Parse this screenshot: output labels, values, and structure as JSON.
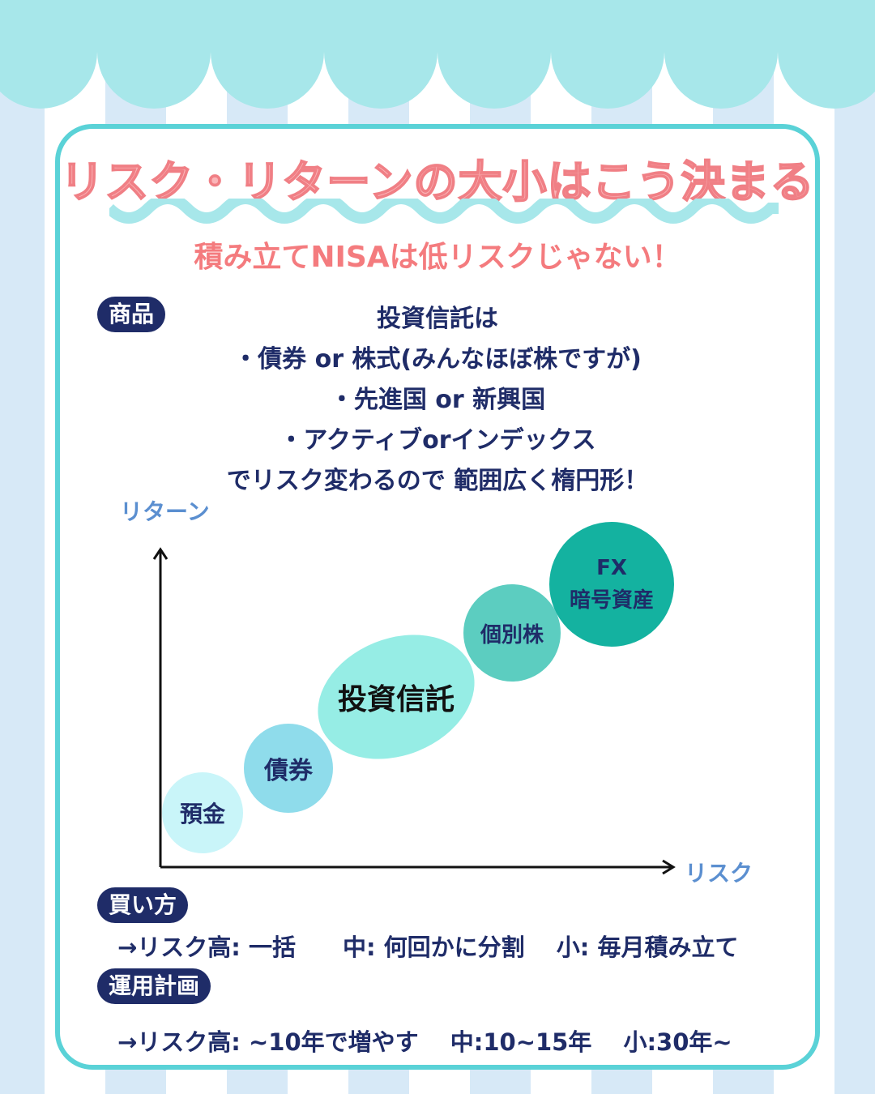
{
  "title": "リスク・リターンの大小はこう決まる",
  "subtitle": "積み立てNISAは低リスクじゃない！",
  "product": {
    "tag": "商品",
    "lines": [
      "投資信託は",
      "・債券 or 株式(みんなほぼ株ですが)",
      "・先進国 or 新興国",
      "・アクティブorインデックス",
      "でリスク変わるので 範囲広く楕円形！"
    ]
  },
  "diagram": {
    "y_axis_label": "リターン",
    "x_axis_label": "リスク",
    "items": [
      {
        "label": "預金",
        "color": "#c9f5f9"
      },
      {
        "label": "債券",
        "color": "#8fdceb"
      },
      {
        "label": "投資信託",
        "color": "#96ede5"
      },
      {
        "label": "個別株",
        "color": "#5ccdc0"
      },
      {
        "label": "FX",
        "label2": "暗号資産",
        "color": "#14b2a0"
      }
    ]
  },
  "buying": {
    "tag": "買い方",
    "text": "→リスク高: 一括　　中: 何回かに分割　 小: 毎月積み立て"
  },
  "plan": {
    "tag": "運用計画",
    "text": "→リスク高: ~10年で増やす　 中:10~15年　 小:30年~"
  },
  "colors": {
    "navy": "#1f2c68",
    "teal": "#5ad2d7",
    "pink": "#f47b7e",
    "awning": "#a7e7ea",
    "stripe": "#d7e9f7"
  }
}
